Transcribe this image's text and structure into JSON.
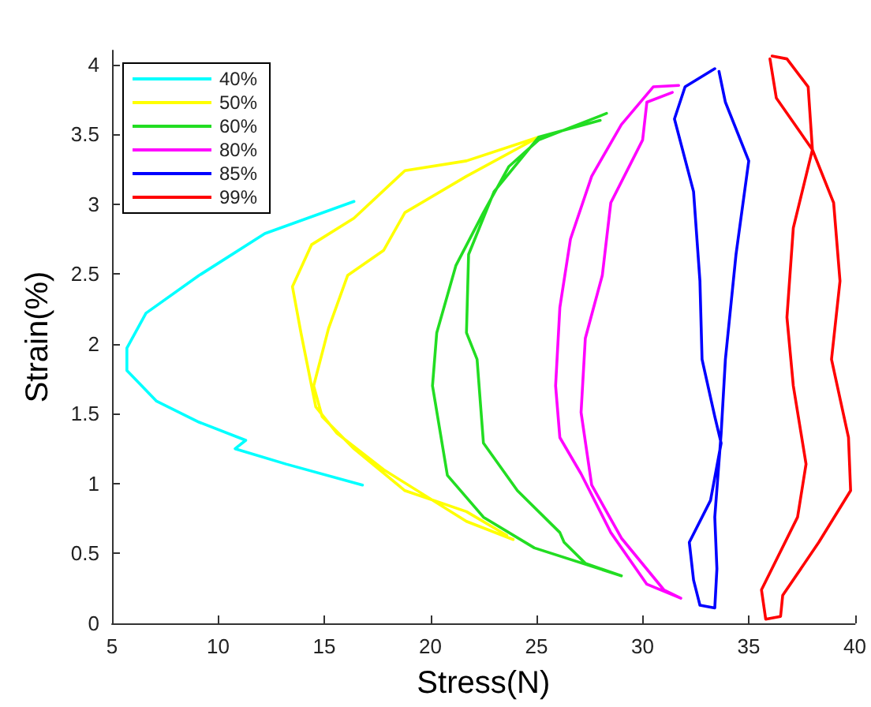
{
  "chart_data": {
    "type": "line",
    "xlabel": "Stress(N)",
    "ylabel": "Strain(%)",
    "xlim": [
      5,
      40
    ],
    "xticks": [
      5,
      10,
      15,
      20,
      25,
      30,
      35,
      40
    ],
    "ylim": [
      0,
      4.1
    ],
    "yticks": [
      0,
      0.5,
      1,
      1.5,
      2,
      2.5,
      3,
      3.5,
      4
    ],
    "grid": false,
    "legend": "top left",
    "series": [
      {
        "name": "40%",
        "color": "#00ffff",
        "x": [
          16.4,
          12.2,
          9.1,
          6.6,
          5.7,
          5.7,
          7.1,
          9.1,
          11.3,
          10.8,
          13.2,
          16.8
        ],
        "values": [
          3.02,
          2.79,
          2.49,
          2.22,
          1.97,
          1.81,
          1.59,
          1.44,
          1.31,
          1.25,
          1.14,
          0.99
        ]
      },
      {
        "name": "50%",
        "color": "#ffff00",
        "x": [
          23.9,
          21.7,
          17.8,
          15.6,
          14.6,
          14.4,
          13.9,
          13.5,
          14.4,
          16.4,
          18.8,
          21.7,
          25.1,
          21.7,
          18.8,
          17.8,
          16.1,
          15.2,
          14.5,
          14.9,
          16.4,
          18.8,
          21.7,
          23.6
        ],
        "values": [
          0.6,
          0.73,
          1.1,
          1.36,
          1.55,
          1.7,
          2.08,
          2.41,
          2.71,
          2.9,
          3.24,
          3.31,
          3.48,
          3.2,
          2.94,
          2.67,
          2.49,
          2.11,
          1.7,
          1.48,
          1.25,
          0.95,
          0.8,
          0.63
        ]
      },
      {
        "name": "60%",
        "color": "#22dd22",
        "x": [
          28.3,
          25.1,
          23.7,
          22.5,
          21.2,
          20.3,
          20.1,
          20.8,
          22.5,
          24.9,
          29.0,
          27.3,
          26.3,
          26.1,
          24.1,
          22.5,
          22.2,
          21.7,
          21.8,
          23.0,
          25.1,
          28.0
        ],
        "values": [
          3.65,
          3.46,
          3.27,
          2.94,
          2.56,
          2.08,
          1.7,
          1.06,
          0.76,
          0.54,
          0.34,
          0.43,
          0.58,
          0.65,
          0.95,
          1.29,
          1.89,
          2.08,
          2.64,
          3.09,
          3.48,
          3.6
        ]
      },
      {
        "name": "80%",
        "color": "#ff00ff",
        "x": [
          31.7,
          30.5,
          29.0,
          27.6,
          26.6,
          26.1,
          25.9,
          26.1,
          27.1,
          28.5,
          30.2,
          31.8,
          31.0,
          29.0,
          27.6,
          27.1,
          27.3,
          28.1,
          28.5,
          30.0,
          30.2,
          31.4
        ],
        "values": [
          3.85,
          3.84,
          3.57,
          3.2,
          2.75,
          2.26,
          1.7,
          1.33,
          1.07,
          0.65,
          0.28,
          0.18,
          0.24,
          0.61,
          0.99,
          1.51,
          2.04,
          2.49,
          3.01,
          3.46,
          3.73,
          3.8
        ]
      },
      {
        "name": "85%",
        "color": "#0000ff",
        "x": [
          33.4,
          32.0,
          31.5,
          32.4,
          32.7,
          32.8,
          33.4,
          33.7,
          33.2,
          32.2,
          32.4,
          32.7,
          33.4,
          33.5,
          33.4,
          33.7,
          33.9,
          34.4,
          35.0,
          33.9,
          33.6
        ],
        "values": [
          3.97,
          3.84,
          3.61,
          3.09,
          2.45,
          1.89,
          1.48,
          1.29,
          0.88,
          0.58,
          0.31,
          0.13,
          0.11,
          0.39,
          0.76,
          1.36,
          1.89,
          2.64,
          3.31,
          3.73,
          3.95
        ]
      },
      {
        "name": "99%",
        "color": "#ff0000",
        "x": [
          36.1,
          36.8,
          37.8,
          38.0,
          39.0,
          39.3,
          38.9,
          39.7,
          39.8,
          38.3,
          36.6,
          36.5,
          35.8,
          35.6,
          37.3,
          37.7,
          37.1,
          36.8,
          37.1,
          38.0,
          36.3,
          36.0
        ],
        "values": [
          4.06,
          4.04,
          3.84,
          3.39,
          3.01,
          2.45,
          1.89,
          1.33,
          0.95,
          0.58,
          0.2,
          0.05,
          0.03,
          0.24,
          0.76,
          1.14,
          1.7,
          2.19,
          2.83,
          3.39,
          3.76,
          4.04
        ]
      }
    ]
  }
}
